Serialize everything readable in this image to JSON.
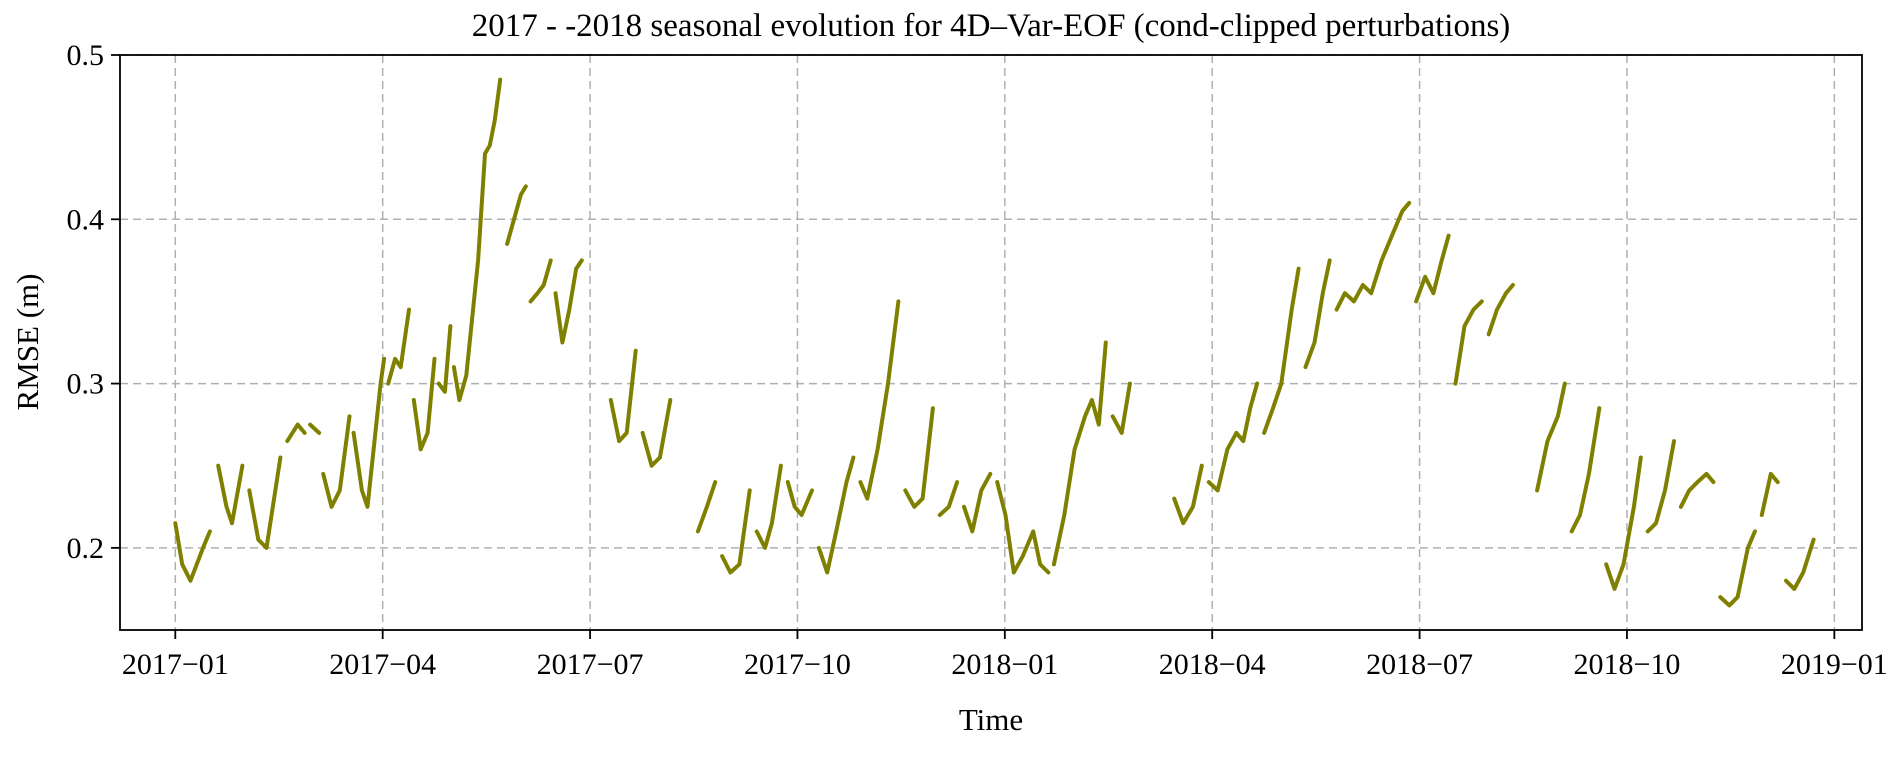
{
  "chart_data": {
    "type": "line",
    "title": "2017 - -2018 seasonal evolution for 4D–Var-EOF (cond-clipped perturbations)",
    "xlabel": "Time",
    "ylabel": "RMSE (m)",
    "series_name": "RMSE",
    "line_color": "#808000",
    "grid": true,
    "legend_position": "none",
    "x_unit": "months since 2017-01",
    "xlim": [
      -0.8,
      24.4
    ],
    "ylim": [
      0.15,
      0.5
    ],
    "x_ticks": [
      {
        "pos": 0,
        "label": "2017−01"
      },
      {
        "pos": 3,
        "label": "2017−04"
      },
      {
        "pos": 6,
        "label": "2017−07"
      },
      {
        "pos": 9,
        "label": "2017−10"
      },
      {
        "pos": 12,
        "label": "2018−01"
      },
      {
        "pos": 15,
        "label": "2018−04"
      },
      {
        "pos": 18,
        "label": "2018−07"
      },
      {
        "pos": 21,
        "label": "2018−10"
      },
      {
        "pos": 24,
        "label": "2019−01"
      }
    ],
    "y_ticks": [
      {
        "pos": 0.2,
        "label": "0.2"
      },
      {
        "pos": 0.3,
        "label": "0.3"
      },
      {
        "pos": 0.4,
        "label": "0.4"
      },
      {
        "pos": 0.5,
        "label": "0.5"
      }
    ],
    "segments": [
      [
        [
          0.0,
          0.215
        ],
        [
          0.1,
          0.19
        ],
        [
          0.22,
          0.18
        ],
        [
          0.4,
          0.2
        ],
        [
          0.5,
          0.21
        ]
      ],
      [
        [
          0.62,
          0.25
        ],
        [
          0.74,
          0.225
        ],
        [
          0.82,
          0.215
        ],
        [
          0.97,
          0.25
        ]
      ],
      [
        [
          1.07,
          0.235
        ],
        [
          1.2,
          0.205
        ],
        [
          1.32,
          0.2
        ],
        [
          1.52,
          0.255
        ]
      ],
      [
        [
          1.62,
          0.265
        ],
        [
          1.77,
          0.275
        ],
        [
          1.87,
          0.27
        ]
      ],
      [
        [
          1.95,
          0.275
        ],
        [
          2.08,
          0.27
        ]
      ],
      [
        [
          2.14,
          0.245
        ],
        [
          2.26,
          0.225
        ],
        [
          2.38,
          0.235
        ],
        [
          2.52,
          0.28
        ]
      ],
      [
        [
          2.58,
          0.27
        ],
        [
          2.7,
          0.235
        ],
        [
          2.78,
          0.225
        ],
        [
          2.97,
          0.3
        ],
        [
          3.02,
          0.315
        ]
      ],
      [
        [
          3.08,
          0.3
        ],
        [
          3.18,
          0.315
        ],
        [
          3.26,
          0.31
        ],
        [
          3.38,
          0.345
        ]
      ],
      [
        [
          3.45,
          0.29
        ],
        [
          3.55,
          0.26
        ],
        [
          3.65,
          0.27
        ],
        [
          3.75,
          0.315
        ]
      ],
      [
        [
          3.81,
          0.3
        ],
        [
          3.9,
          0.295
        ],
        [
          3.98,
          0.335
        ]
      ],
      [
        [
          4.03,
          0.31
        ],
        [
          4.11,
          0.29
        ],
        [
          4.21,
          0.305
        ],
        [
          4.38,
          0.375
        ],
        [
          4.48,
          0.44
        ],
        [
          4.55,
          0.445
        ],
        [
          4.62,
          0.46
        ],
        [
          4.7,
          0.485
        ]
      ],
      [
        [
          4.8,
          0.385
        ],
        [
          4.9,
          0.4
        ],
        [
          5.0,
          0.415
        ],
        [
          5.07,
          0.42
        ]
      ],
      [
        [
          5.14,
          0.35
        ],
        [
          5.24,
          0.355
        ],
        [
          5.33,
          0.36
        ],
        [
          5.43,
          0.375
        ]
      ],
      [
        [
          5.5,
          0.355
        ],
        [
          5.6,
          0.325
        ],
        [
          5.7,
          0.345
        ],
        [
          5.8,
          0.37
        ],
        [
          5.88,
          0.375
        ]
      ],
      [
        [
          6.3,
          0.29
        ],
        [
          6.42,
          0.265
        ],
        [
          6.53,
          0.27
        ],
        [
          6.66,
          0.32
        ]
      ],
      [
        [
          6.76,
          0.27
        ],
        [
          6.89,
          0.25
        ],
        [
          7.01,
          0.255
        ],
        [
          7.16,
          0.29
        ]
      ],
      [
        [
          7.56,
          0.21
        ],
        [
          7.69,
          0.225
        ],
        [
          7.81,
          0.24
        ]
      ],
      [
        [
          7.91,
          0.195
        ],
        [
          8.03,
          0.185
        ],
        [
          8.16,
          0.19
        ],
        [
          8.31,
          0.235
        ]
      ],
      [
        [
          8.41,
          0.21
        ],
        [
          8.53,
          0.2
        ],
        [
          8.63,
          0.215
        ],
        [
          8.76,
          0.25
        ]
      ],
      [
        [
          8.86,
          0.24
        ],
        [
          8.96,
          0.225
        ],
        [
          9.06,
          0.22
        ],
        [
          9.21,
          0.235
        ]
      ],
      [
        [
          9.31,
          0.2
        ],
        [
          9.43,
          0.185
        ],
        [
          9.56,
          0.21
        ],
        [
          9.71,
          0.24
        ],
        [
          9.81,
          0.255
        ]
      ],
      [
        [
          9.91,
          0.24
        ],
        [
          10.01,
          0.23
        ],
        [
          10.16,
          0.26
        ],
        [
          10.31,
          0.3
        ],
        [
          10.46,
          0.35
        ]
      ],
      [
        [
          10.56,
          0.235
        ],
        [
          10.69,
          0.225
        ],
        [
          10.81,
          0.23
        ],
        [
          10.96,
          0.285
        ]
      ],
      [
        [
          11.06,
          0.22
        ],
        [
          11.19,
          0.225
        ],
        [
          11.31,
          0.24
        ]
      ],
      [
        [
          11.41,
          0.225
        ],
        [
          11.53,
          0.21
        ],
        [
          11.66,
          0.235
        ],
        [
          11.79,
          0.245
        ]
      ],
      [
        [
          11.89,
          0.24
        ],
        [
          12.01,
          0.22
        ],
        [
          12.13,
          0.185
        ],
        [
          12.26,
          0.195
        ],
        [
          12.41,
          0.21
        ],
        [
          12.51,
          0.19
        ],
        [
          12.63,
          0.185
        ]
      ],
      [
        [
          12.71,
          0.19
        ],
        [
          12.86,
          0.22
        ],
        [
          13.01,
          0.26
        ],
        [
          13.16,
          0.28
        ],
        [
          13.26,
          0.29
        ],
        [
          13.36,
          0.275
        ],
        [
          13.46,
          0.325
        ]
      ],
      [
        [
          13.56,
          0.28
        ],
        [
          13.69,
          0.27
        ],
        [
          13.81,
          0.3
        ]
      ],
      [
        [
          14.45,
          0.23
        ],
        [
          14.58,
          0.215
        ],
        [
          14.72,
          0.225
        ],
        [
          14.85,
          0.25
        ]
      ],
      [
        [
          14.95,
          0.24
        ],
        [
          15.08,
          0.235
        ],
        [
          15.22,
          0.26
        ],
        [
          15.35,
          0.27
        ],
        [
          15.45,
          0.265
        ],
        [
          15.55,
          0.285
        ],
        [
          15.65,
          0.3
        ]
      ],
      [
        [
          15.75,
          0.27
        ],
        [
          15.88,
          0.285
        ],
        [
          16.0,
          0.3
        ],
        [
          16.15,
          0.345
        ],
        [
          16.25,
          0.37
        ]
      ],
      [
        [
          16.35,
          0.31
        ],
        [
          16.48,
          0.325
        ],
        [
          16.6,
          0.355
        ],
        [
          16.7,
          0.375
        ]
      ],
      [
        [
          16.8,
          0.345
        ],
        [
          16.92,
          0.355
        ],
        [
          17.05,
          0.35
        ],
        [
          17.18,
          0.36
        ],
        [
          17.3,
          0.355
        ],
        [
          17.45,
          0.375
        ],
        [
          17.6,
          0.39
        ],
        [
          17.75,
          0.405
        ],
        [
          17.85,
          0.41
        ]
      ],
      [
        [
          17.95,
          0.35
        ],
        [
          18.08,
          0.365
        ],
        [
          18.2,
          0.355
        ],
        [
          18.32,
          0.375
        ],
        [
          18.42,
          0.39
        ]
      ],
      [
        [
          18.52,
          0.3
        ],
        [
          18.65,
          0.335
        ],
        [
          18.78,
          0.345
        ],
        [
          18.9,
          0.35
        ]
      ],
      [
        [
          19.0,
          0.33
        ],
        [
          19.12,
          0.345
        ],
        [
          19.25,
          0.355
        ],
        [
          19.35,
          0.36
        ]
      ],
      [
        [
          19.7,
          0.235
        ],
        [
          19.85,
          0.265
        ],
        [
          20.0,
          0.28
        ],
        [
          20.1,
          0.3
        ]
      ],
      [
        [
          20.2,
          0.21
        ],
        [
          20.32,
          0.22
        ],
        [
          20.45,
          0.245
        ],
        [
          20.6,
          0.285
        ]
      ],
      [
        [
          20.7,
          0.19
        ],
        [
          20.82,
          0.175
        ],
        [
          20.95,
          0.19
        ],
        [
          21.1,
          0.225
        ],
        [
          21.2,
          0.255
        ]
      ],
      [
        [
          21.3,
          0.21
        ],
        [
          21.42,
          0.215
        ],
        [
          21.55,
          0.235
        ],
        [
          21.68,
          0.265
        ]
      ],
      [
        [
          21.78,
          0.225
        ],
        [
          21.9,
          0.235
        ],
        [
          22.02,
          0.24
        ],
        [
          22.15,
          0.245
        ],
        [
          22.25,
          0.24
        ]
      ],
      [
        [
          22.35,
          0.17
        ],
        [
          22.48,
          0.165
        ],
        [
          22.6,
          0.17
        ],
        [
          22.75,
          0.2
        ],
        [
          22.85,
          0.21
        ]
      ],
      [
        [
          22.95,
          0.22
        ],
        [
          23.08,
          0.245
        ],
        [
          23.18,
          0.24
        ]
      ],
      [
        [
          23.3,
          0.18
        ],
        [
          23.42,
          0.175
        ],
        [
          23.55,
          0.185
        ],
        [
          23.7,
          0.205
        ]
      ]
    ]
  }
}
